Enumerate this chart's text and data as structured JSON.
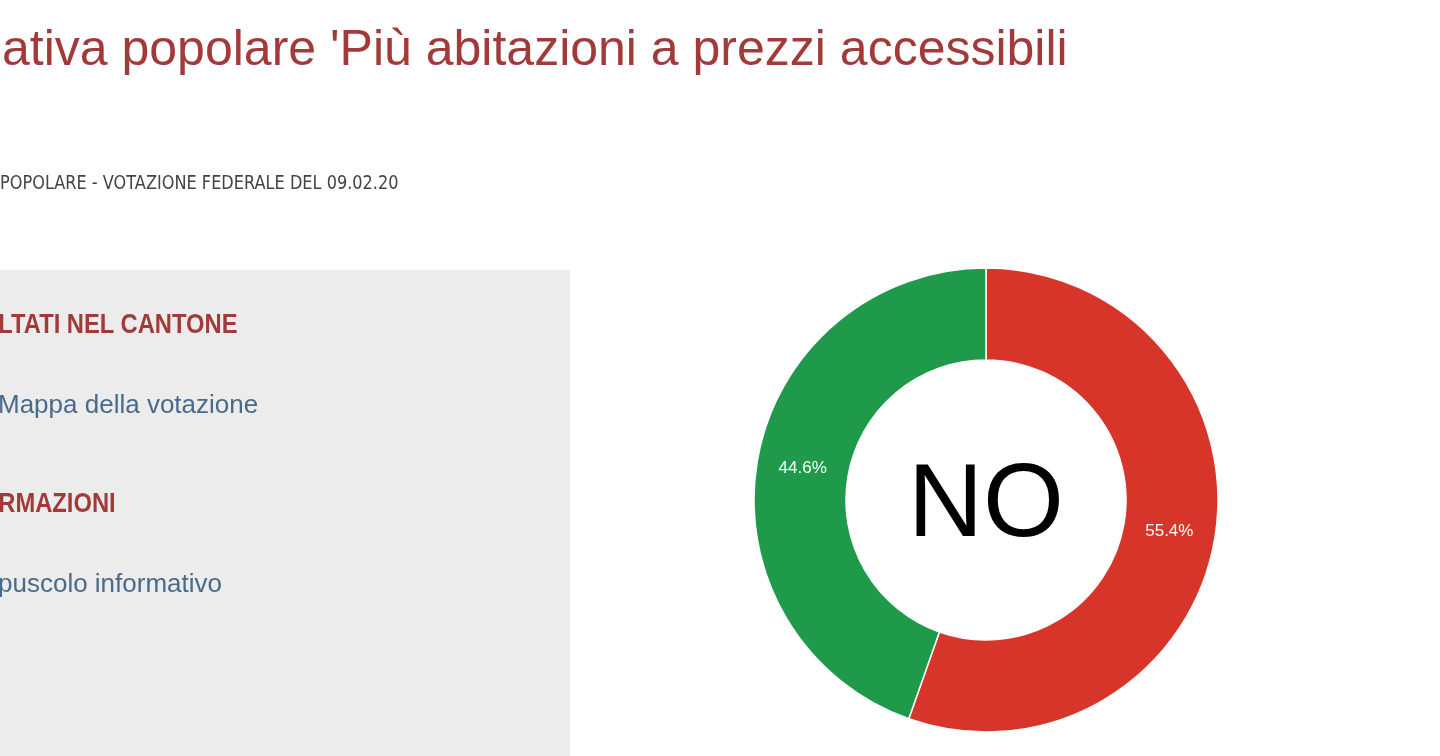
{
  "chart_data": {
    "type": "donut",
    "title": "ativa popolare 'Più abitazioni a prezzi accessibili",
    "subtitle": "POPOLARE - VOTAZIONE FEDERALE DEL 09.02.20",
    "categories": [
      null,
      null
    ],
    "values": [
      55.4,
      44.6
    ],
    "colors": [
      "#d8352a",
      "#1f9a4b"
    ],
    "value_labels": [
      "55.4%",
      "44.6%"
    ],
    "annotations": [
      "LTATI NEL CANTONE",
      "Mappa della votazione",
      "RMAZIONI",
      "puscolo informativo",
      "NO"
    ]
  }
}
